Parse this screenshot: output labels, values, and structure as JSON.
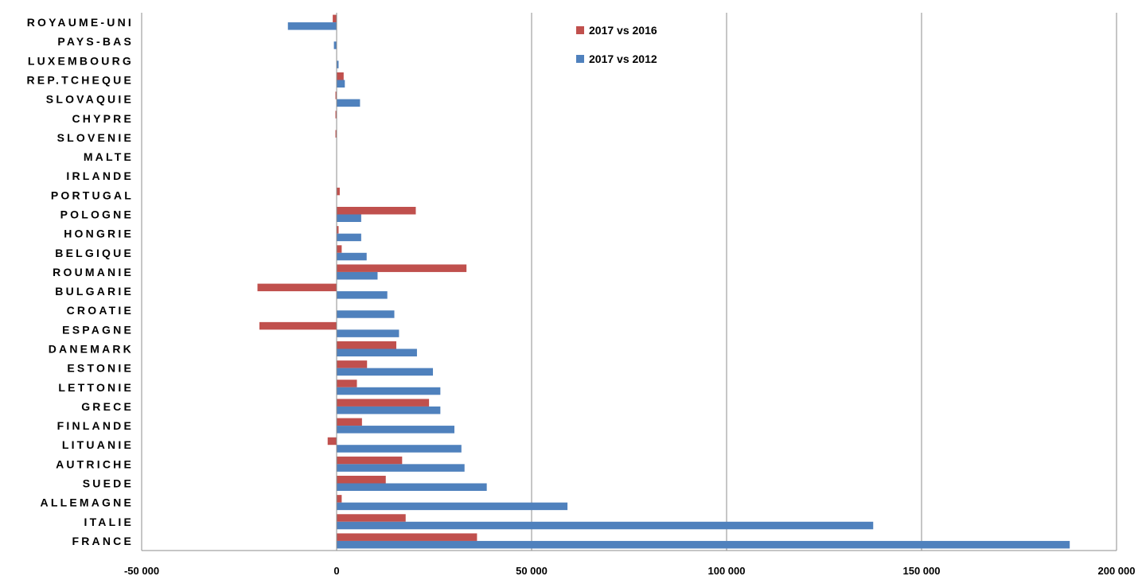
{
  "chart_data": {
    "type": "bar",
    "orientation": "horizontal",
    "categories": [
      "ROYAUME-UNI",
      "PAYS-BAS",
      "LUXEMBOURG",
      "REP.TCHEQUE",
      "SLOVAQUIE",
      "CHYPRE",
      "SLOVENIE",
      "MALTE",
      "IRLANDE",
      "PORTUGAL",
      "POLOGNE",
      "HONGRIE",
      "BELGIQUE",
      "ROUMANIE",
      "BULGARIE",
      "CROATIE",
      "ESPAGNE",
      "DANEMARK",
      "ESTONIE",
      "LETTONIE",
      "GRECE",
      "FINLANDE",
      "LITUANIE",
      "AUTRICHE",
      "SUEDE",
      "ALLEMAGNE",
      "ITALIE",
      "FRANCE"
    ],
    "series": [
      {
        "name": "2017 vs 2016",
        "color": "#C0504D",
        "values": [
          -1000,
          0,
          0,
          1800,
          -300,
          -300,
          -300,
          0,
          0,
          800,
          20300,
          500,
          1300,
          33300,
          -20300,
          0,
          -19800,
          15300,
          7800,
          5200,
          23700,
          6500,
          -2300,
          16800,
          12600,
          1300,
          17700,
          36000
        ]
      },
      {
        "name": "2017 vs 2012",
        "color": "#4F81BD",
        "values": [
          -12500,
          -700,
          500,
          2100,
          6000,
          0,
          0,
          0,
          0,
          0,
          6300,
          6300,
          7700,
          10500,
          13000,
          14800,
          16000,
          20600,
          24700,
          26600,
          26600,
          30200,
          32000,
          32800,
          38500,
          59200,
          137600,
          188000
        ]
      }
    ],
    "xlim": [
      -50000,
      200000
    ],
    "xticks": [
      "-50 000",
      "0",
      "50 000",
      "100 000",
      "150 000",
      "200 000"
    ],
    "xtick_values": [
      -50000,
      0,
      50000,
      100000,
      150000,
      200000
    ],
    "grid": "vertical",
    "legend_position": "top-center",
    "title": "",
    "xlabel": "",
    "ylabel": ""
  }
}
